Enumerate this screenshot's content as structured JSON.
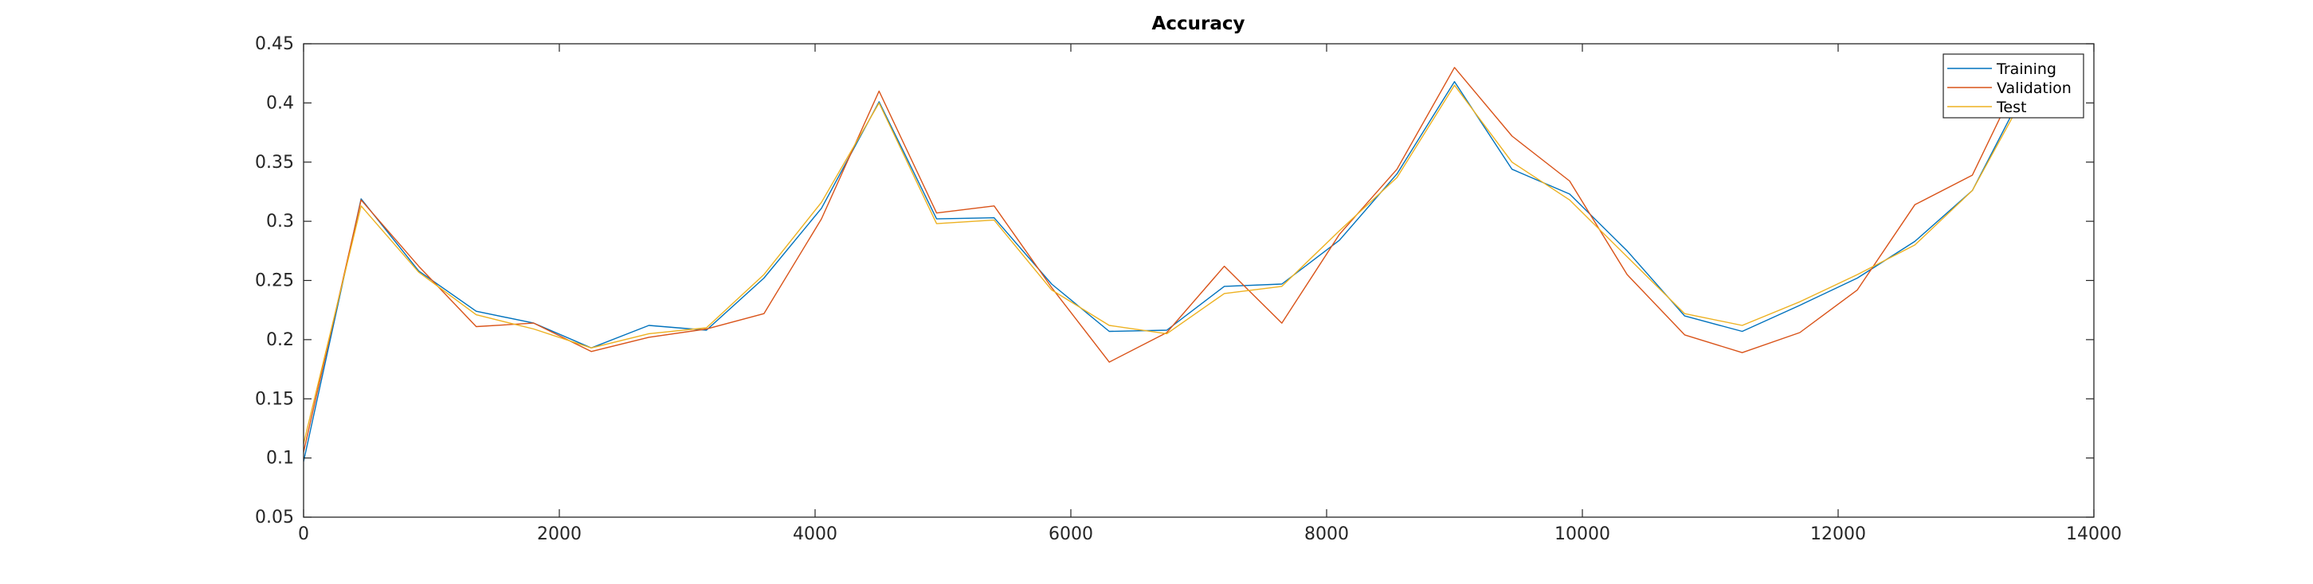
{
  "chart_data": {
    "type": "line",
    "title": "Accuracy",
    "xlabel": "",
    "ylabel": "",
    "xlim": [
      0,
      14000
    ],
    "ylim": [
      0.05,
      0.45
    ],
    "x_ticks": [
      0,
      2000,
      4000,
      6000,
      8000,
      10000,
      12000,
      14000
    ],
    "x_tick_labels": [
      "0",
      "2000",
      "4000",
      "6000",
      "8000",
      "10000",
      "12000",
      "14000"
    ],
    "y_ticks": [
      0.05,
      0.1,
      0.15,
      0.2,
      0.25,
      0.3,
      0.35,
      0.4,
      0.45
    ],
    "y_tick_labels": [
      "0.05",
      "0.1",
      "0.15",
      "0.2",
      "0.25",
      "0.3",
      "0.35",
      "0.4",
      "0.45"
    ],
    "grid": false,
    "legend": "top-right",
    "x": [
      0,
      450,
      900,
      1350,
      1800,
      2250,
      2700,
      3150,
      3600,
      4050,
      4500,
      4950,
      5400,
      5850,
      6300,
      6750,
      7200,
      7650,
      8100,
      8550,
      9000,
      9450,
      9900,
      10350,
      10800,
      11250,
      11700,
      12150,
      12600,
      13050,
      13500
    ],
    "series": [
      {
        "name": "Training",
        "color": "#0072bd",
        "values": [
          0.097,
          0.319,
          0.258,
          0.224,
          0.214,
          0.193,
          0.212,
          0.208,
          0.252,
          0.311,
          0.401,
          0.302,
          0.303,
          0.247,
          0.207,
          0.208,
          0.245,
          0.247,
          0.284,
          0.34,
          0.418,
          0.344,
          0.323,
          0.275,
          0.22,
          0.207,
          0.229,
          0.252,
          0.283,
          0.326,
          0.42
        ]
      },
      {
        "name": "Validation",
        "color": "#d95319",
        "values": [
          0.105,
          0.318,
          0.262,
          0.211,
          0.214,
          0.19,
          0.202,
          0.209,
          0.222,
          0.302,
          0.41,
          0.307,
          0.313,
          0.244,
          0.181,
          0.206,
          0.262,
          0.214,
          0.289,
          0.344,
          0.43,
          0.372,
          0.334,
          0.255,
          0.204,
          0.189,
          0.206,
          0.242,
          0.314,
          0.339,
          0.44
        ]
      },
      {
        "name": "Test",
        "color": "#edb120",
        "values": [
          0.112,
          0.313,
          0.257,
          0.221,
          0.209,
          0.193,
          0.205,
          0.21,
          0.255,
          0.316,
          0.4,
          0.298,
          0.301,
          0.242,
          0.212,
          0.205,
          0.239,
          0.245,
          0.292,
          0.337,
          0.415,
          0.35,
          0.318,
          0.27,
          0.222,
          0.212,
          0.232,
          0.255,
          0.28,
          0.326,
          0.415
        ]
      }
    ]
  }
}
